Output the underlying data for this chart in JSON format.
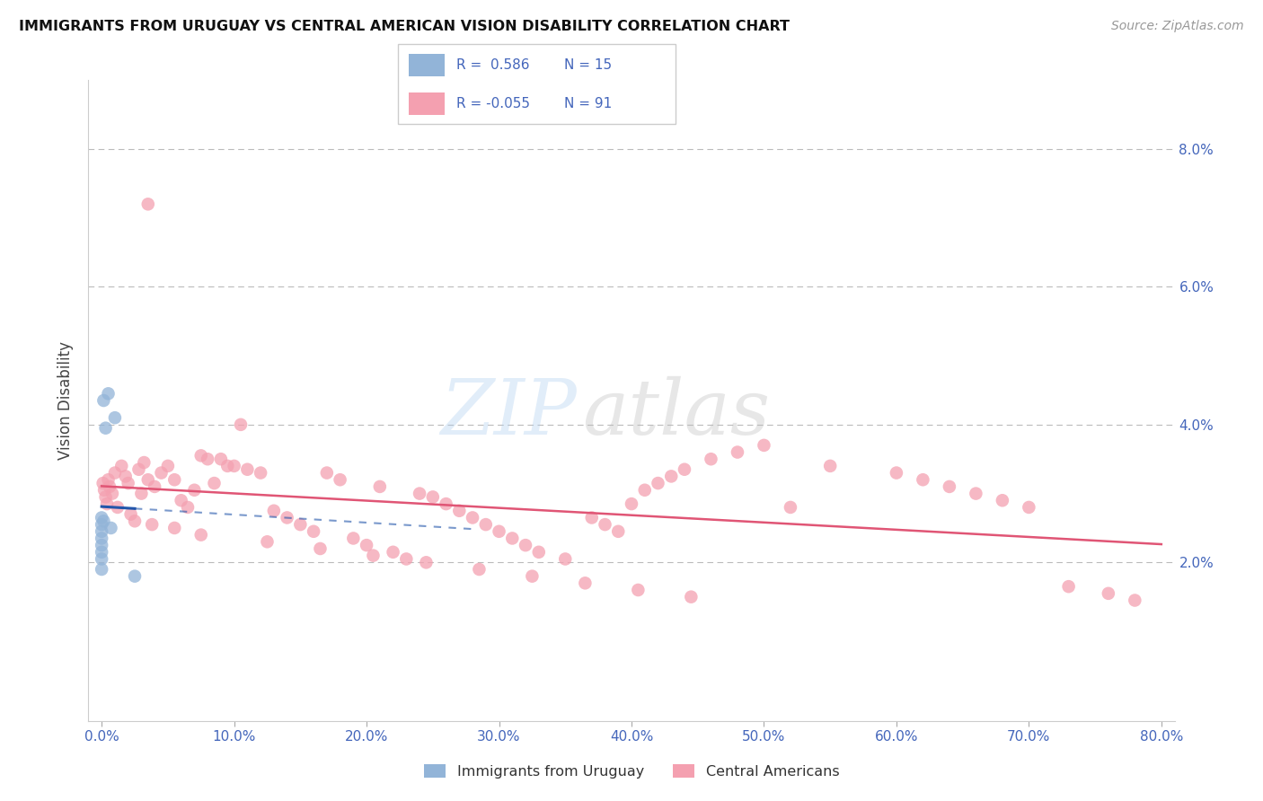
{
  "title": "IMMIGRANTS FROM URUGUAY VS CENTRAL AMERICAN VISION DISABILITY CORRELATION CHART",
  "source": "Source: ZipAtlas.com",
  "ylabel": "Vision Disability",
  "legend_label1": "Immigrants from Uruguay",
  "legend_label2": "Central Americans",
  "r1": 0.586,
  "n1": 15,
  "r2": -0.055,
  "n2": 91,
  "color_blue": "#92B4D8",
  "color_pink": "#F4A0B0",
  "color_blue_line": "#2255AA",
  "color_pink_line": "#E05575",
  "watermark_zip": "ZIP",
  "watermark_atlas": "atlas",
  "xlim": [
    -1,
    81
  ],
  "ylim_pct": [
    -0.3,
    9.0
  ],
  "x_ticks": [
    0,
    10,
    20,
    30,
    40,
    50,
    60,
    70,
    80
  ],
  "y_ticks": [
    2.0,
    4.0,
    6.0,
    8.0
  ],
  "uruguay_x": [
    0.0,
    0.0,
    0.0,
    0.0,
    0.0,
    0.0,
    0.0,
    0.0,
    0.15,
    0.15,
    0.3,
    0.5,
    0.7,
    1.0,
    2.5
  ],
  "uruguay_y": [
    2.65,
    2.55,
    2.45,
    2.35,
    2.25,
    2.15,
    2.05,
    1.9,
    2.6,
    4.35,
    3.95,
    4.45,
    2.5,
    4.1,
    1.8
  ],
  "central_x": [
    0.1,
    0.2,
    0.3,
    0.4,
    0.5,
    0.6,
    0.8,
    1.0,
    1.2,
    1.5,
    1.8,
    2.0,
    2.2,
    2.5,
    2.8,
    3.0,
    3.2,
    3.5,
    3.8,
    4.0,
    4.5,
    5.0,
    5.5,
    6.0,
    6.5,
    7.0,
    7.5,
    8.0,
    8.5,
    9.0,
    9.5,
    10.0,
    11.0,
    12.0,
    13.0,
    14.0,
    15.0,
    16.0,
    17.0,
    18.0,
    19.0,
    20.0,
    21.0,
    22.0,
    23.0,
    24.0,
    25.0,
    26.0,
    27.0,
    28.0,
    29.0,
    30.0,
    31.0,
    32.0,
    33.0,
    35.0,
    37.0,
    38.0,
    39.0,
    40.0,
    41.0,
    42.0,
    43.0,
    44.0,
    46.0,
    48.0,
    50.0,
    52.0,
    55.0,
    60.0,
    62.0,
    64.0,
    66.0,
    68.0,
    70.0,
    73.0,
    76.0,
    78.0,
    10.5,
    3.5,
    5.5,
    7.5,
    12.5,
    16.5,
    20.5,
    24.5,
    28.5,
    32.5,
    36.5,
    40.5,
    44.5
  ],
  "central_y": [
    3.15,
    3.05,
    2.95,
    2.85,
    3.2,
    3.1,
    3.0,
    3.3,
    2.8,
    3.4,
    3.25,
    3.15,
    2.7,
    2.6,
    3.35,
    3.0,
    3.45,
    3.2,
    2.55,
    3.1,
    3.3,
    3.4,
    3.2,
    2.9,
    2.8,
    3.05,
    3.55,
    3.5,
    3.15,
    3.5,
    3.4,
    3.4,
    3.35,
    3.3,
    2.75,
    2.65,
    2.55,
    2.45,
    3.3,
    3.2,
    2.35,
    2.25,
    3.1,
    2.15,
    2.05,
    3.0,
    2.95,
    2.85,
    2.75,
    2.65,
    2.55,
    2.45,
    2.35,
    2.25,
    2.15,
    2.05,
    2.65,
    2.55,
    2.45,
    2.85,
    3.05,
    3.15,
    3.25,
    3.35,
    3.5,
    3.6,
    3.7,
    2.8,
    3.4,
    3.3,
    3.2,
    3.1,
    3.0,
    2.9,
    2.8,
    1.65,
    1.55,
    1.45,
    4.0,
    7.2,
    2.5,
    2.4,
    2.3,
    2.2,
    2.1,
    2.0,
    1.9,
    1.8,
    1.7,
    1.6,
    1.5
  ]
}
